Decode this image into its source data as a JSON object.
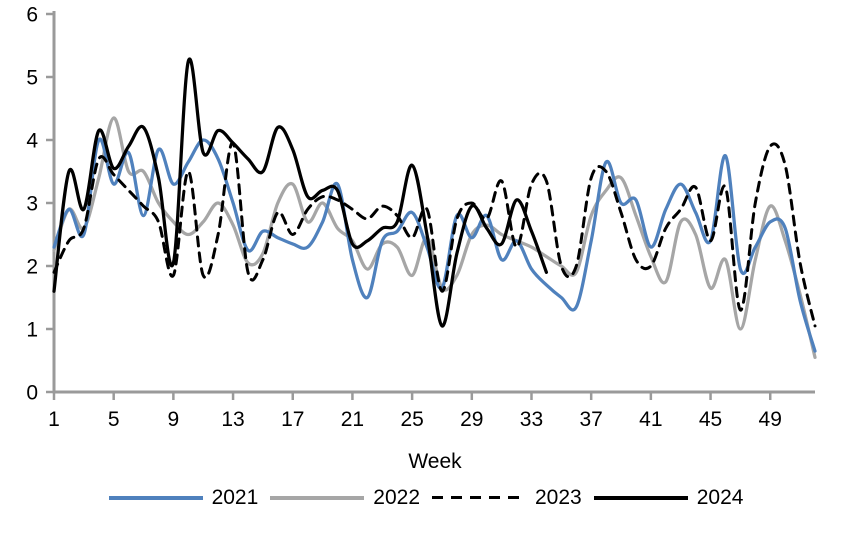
{
  "chart_data": {
    "type": "line",
    "title": "",
    "xlabel": "Week",
    "ylabel": "",
    "ylim": [
      0,
      6
    ],
    "yticks": [
      0,
      1,
      2,
      3,
      4,
      5,
      6
    ],
    "xticks": [
      1,
      5,
      9,
      13,
      17,
      21,
      25,
      29,
      33,
      37,
      41,
      45,
      49
    ],
    "x_weeks": [
      1,
      2,
      3,
      4,
      5,
      6,
      7,
      8,
      9,
      10,
      11,
      12,
      13,
      14,
      15,
      16,
      17,
      18,
      19,
      20,
      21,
      22,
      23,
      24,
      25,
      26,
      27,
      28,
      29,
      30,
      31,
      32,
      33,
      34,
      35,
      36,
      37,
      38,
      39,
      40,
      41,
      42,
      43,
      44,
      45,
      46,
      47,
      48,
      49,
      50,
      51,
      52
    ],
    "grid": false,
    "legend_position": "bottom",
    "axis_color": "#9a9a9a",
    "series": [
      {
        "name": "2021",
        "color": "#4F81BD",
        "style": "solid",
        "values": [
          2.3,
          2.9,
          2.5,
          4.0,
          3.3,
          3.8,
          2.8,
          3.85,
          3.3,
          3.65,
          4.0,
          3.7,
          3.0,
          2.25,
          2.55,
          2.45,
          2.35,
          2.3,
          2.7,
          3.3,
          2.1,
          1.5,
          2.4,
          2.55,
          2.85,
          2.3,
          1.65,
          2.8,
          2.45,
          2.8,
          2.1,
          2.4,
          1.95,
          1.7,
          1.5,
          1.35,
          2.4,
          3.65,
          3.0,
          3.05,
          2.3,
          2.9,
          3.3,
          2.85,
          2.4,
          3.75,
          1.95,
          2.3,
          2.7,
          2.6,
          1.45,
          0.65
        ]
      },
      {
        "name": "2022",
        "color": "#A6A6A6",
        "style": "solid",
        "values": [
          2.25,
          2.9,
          2.6,
          3.4,
          4.35,
          3.5,
          3.5,
          3.0,
          2.7,
          2.5,
          2.7,
          3.0,
          2.65,
          2.05,
          2.2,
          3.0,
          3.3,
          2.7,
          3.0,
          2.6,
          2.4,
          1.95,
          2.35,
          2.3,
          1.85,
          2.45,
          1.65,
          1.85,
          2.5,
          2.65,
          2.5,
          2.4,
          2.3,
          2.15,
          2.0,
          1.9,
          2.8,
          3.2,
          3.4,
          2.8,
          2.15,
          1.75,
          2.7,
          2.5,
          1.65,
          2.1,
          1.0,
          2.1,
          2.95,
          2.4,
          1.55,
          0.55
        ]
      },
      {
        "name": "2023",
        "color": "#000000",
        "style": "dashed",
        "values": [
          1.9,
          2.4,
          2.6,
          3.7,
          3.45,
          3.2,
          2.95,
          2.7,
          1.85,
          3.5,
          1.85,
          2.5,
          3.95,
          1.9,
          2.1,
          2.85,
          2.5,
          2.9,
          3.1,
          3.05,
          2.9,
          2.75,
          2.95,
          2.8,
          2.45,
          2.9,
          1.6,
          2.75,
          3.0,
          2.75,
          3.35,
          2.3,
          3.3,
          3.35,
          2.0,
          2.0,
          3.4,
          3.5,
          2.85,
          2.1,
          2.0,
          2.6,
          2.9,
          3.25,
          2.4,
          3.25,
          1.3,
          3.0,
          3.9,
          3.6,
          2.05,
          1.05
        ]
      },
      {
        "name": "2024",
        "color": "#000000",
        "style": "solid",
        "values": [
          1.6,
          3.5,
          2.9,
          4.15,
          3.55,
          3.9,
          4.2,
          3.4,
          2.05,
          5.25,
          3.8,
          4.15,
          3.95,
          3.7,
          3.5,
          4.2,
          3.85,
          3.1,
          3.2,
          3.2,
          2.35,
          2.4,
          2.6,
          2.7,
          3.6,
          2.5,
          1.05,
          2.2,
          2.95,
          2.6,
          2.35,
          3.05,
          2.55,
          1.9
        ]
      }
    ]
  }
}
